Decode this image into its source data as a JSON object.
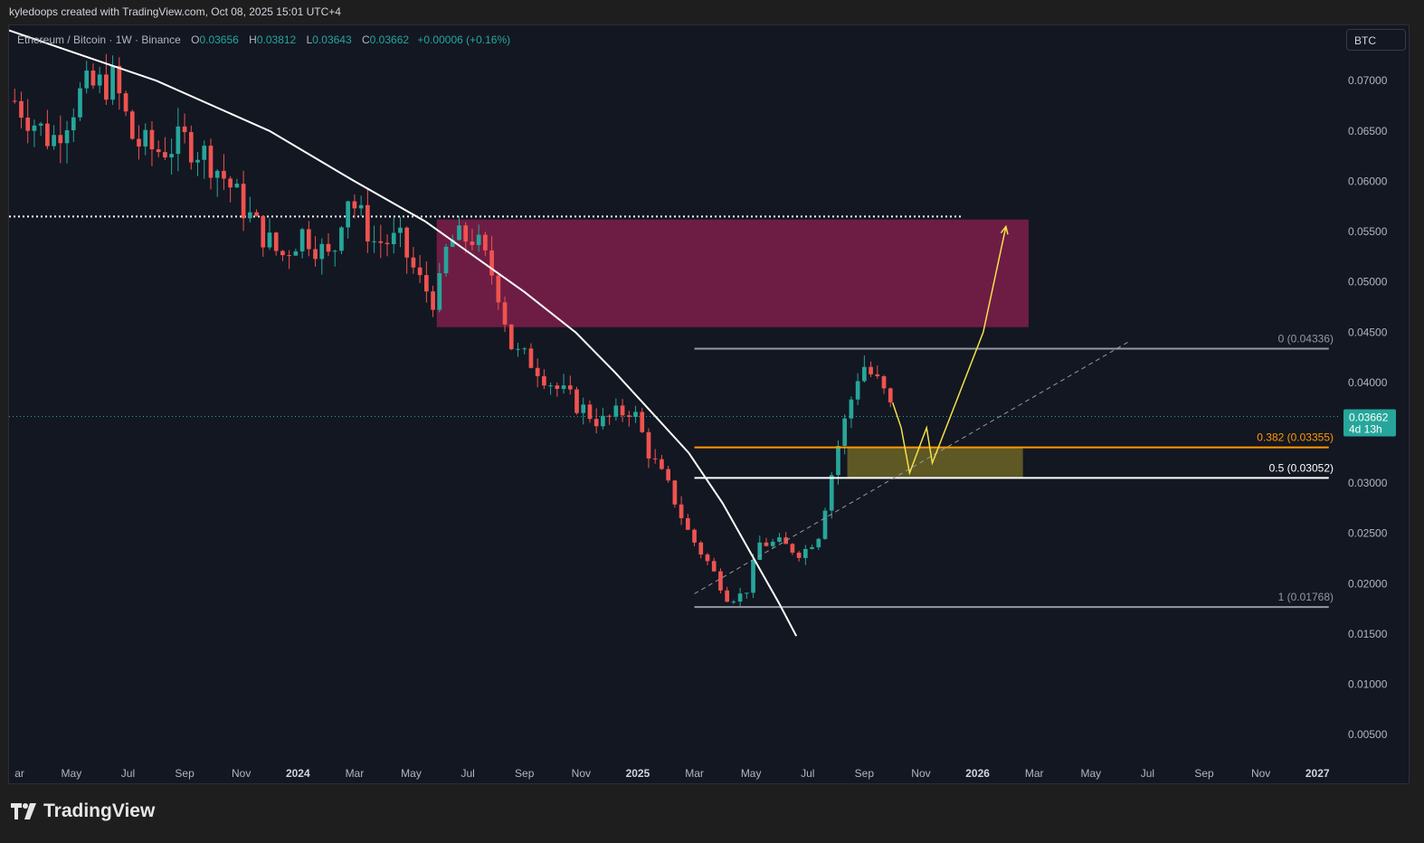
{
  "header": {
    "attribution": "kyledoops created with TradingView.com, Oct 08, 2025 15:01 UTC+4"
  },
  "legend": {
    "symbol": "Ethereum / Bitcoin · 1W · Binance",
    "open_label": "O",
    "open": "0.03656",
    "high_label": "H",
    "high": "0.03812",
    "low_label": "L",
    "low": "0.03643",
    "close_label": "C",
    "close": "0.03662",
    "change": "+0.00006 (+0.16%)"
  },
  "symbol_button": "BTC",
  "price_badge": {
    "price": "0.03662",
    "countdown": "4d 13h"
  },
  "footer": {
    "brand": "TradingView"
  },
  "colors": {
    "up": "#26a69a",
    "down": "#ef5350",
    "supply_zone": "#6d1d44",
    "demand_zone": "#6b6424",
    "fib_382": "#ff9800",
    "projection": "#f5e04a"
  },
  "chart_data": {
    "type": "candlestick",
    "timeframe": "1W",
    "y_ticks": [
      "0.07000",
      "0.06500",
      "0.06000",
      "0.05500",
      "0.05000",
      "0.04500",
      "0.04000",
      "0.03000",
      "0.02500",
      "0.02000",
      "0.01500",
      "0.01000",
      "0.00500"
    ],
    "x_ticks": [
      "ar",
      "May",
      "Jul",
      "Sep",
      "Nov",
      "2024",
      "Mar",
      "May",
      "Jul",
      "Sep",
      "Nov",
      "2025",
      "Mar",
      "May",
      "Jul",
      "Sep",
      "Nov",
      "2026",
      "Mar",
      "May",
      "Jul",
      "Sep",
      "Nov",
      "2027"
    ],
    "x_tick_months": [
      3,
      5,
      7,
      9,
      11,
      13,
      15,
      17,
      19,
      21,
      23,
      25,
      27,
      29,
      31,
      33,
      35,
      37,
      39,
      41,
      43,
      45,
      47,
      49
    ],
    "ylim": [
      0.0025,
      0.0755
    ],
    "xlim": [
      2.8,
      49.6
    ],
    "anchors": [
      [
        3.0,
        0.068
      ],
      [
        4.3,
        0.064
      ],
      [
        5.4,
        0.069
      ],
      [
        6.5,
        0.07
      ],
      [
        7.2,
        0.064
      ],
      [
        8.0,
        0.063
      ],
      [
        9.0,
        0.064
      ],
      [
        9.8,
        0.0625
      ],
      [
        10.5,
        0.06
      ],
      [
        11.4,
        0.056
      ],
      [
        12.4,
        0.0525
      ],
      [
        13.2,
        0.055
      ],
      [
        14.2,
        0.052
      ],
      [
        14.7,
        0.059
      ],
      [
        15.7,
        0.054
      ],
      [
        16.6,
        0.054
      ],
      [
        17.3,
        0.05
      ],
      [
        17.9,
        0.048
      ],
      [
        18.3,
        0.054
      ],
      [
        19.2,
        0.0545
      ],
      [
        20.0,
        0.05
      ],
      [
        20.6,
        0.043
      ],
      [
        21.3,
        0.042
      ],
      [
        22.1,
        0.0395
      ],
      [
        23.0,
        0.0375
      ],
      [
        23.7,
        0.036
      ],
      [
        24.4,
        0.037
      ],
      [
        24.8,
        0.0375
      ],
      [
        25.4,
        0.033
      ],
      [
        26.2,
        0.029
      ],
      [
        26.8,
        0.025
      ],
      [
        27.5,
        0.022
      ],
      [
        28.2,
        0.0185
      ],
      [
        28.8,
        0.019
      ],
      [
        29.3,
        0.024
      ],
      [
        30.0,
        0.024
      ],
      [
        30.8,
        0.023
      ],
      [
        31.4,
        0.025
      ],
      [
        32.0,
        0.033
      ],
      [
        32.9,
        0.042
      ],
      [
        33.6,
        0.0395
      ],
      [
        34.0,
        0.037
      ]
    ],
    "candle_start": 3.0,
    "candle_end": 34.0,
    "resistance_level": 0.0565,
    "supply_zone": {
      "x0": 17.9,
      "x1": 38.8,
      "y0": 0.0455,
      "y1": 0.0562
    },
    "demand_zone": {
      "x0": 32.4,
      "x1": 38.6,
      "y0": 0.0305,
      "y1": 0.0335
    },
    "fib_x": [
      27.0,
      49.4
    ],
    "fib_levels": [
      {
        "label": "0 (0.04336)",
        "value": 0.04336,
        "color": "#9598a1"
      },
      {
        "label": "0.382 (0.03355)",
        "value": 0.03355,
        "color": "#ff9800"
      },
      {
        "label": "0.5 (0.03052)",
        "value": 0.03052,
        "color": "#ffffff"
      },
      {
        "label": "1 (0.01768)",
        "value": 0.01768,
        "color": "#9598a1"
      }
    ],
    "curve": [
      [
        2.8,
        0.075
      ],
      [
        8.0,
        0.07
      ],
      [
        12.0,
        0.065
      ],
      [
        15.0,
        0.06
      ],
      [
        17.5,
        0.056
      ],
      [
        19.0,
        0.053
      ],
      [
        21.0,
        0.049
      ],
      [
        22.8,
        0.045
      ],
      [
        24.2,
        0.041
      ],
      [
        25.5,
        0.037
      ],
      [
        26.8,
        0.033
      ],
      [
        28.0,
        0.028
      ],
      [
        29.0,
        0.023
      ],
      [
        30.0,
        0.018
      ],
      [
        30.6,
        0.0148
      ]
    ],
    "trendline": [
      [
        27.0,
        0.019
      ],
      [
        42.3,
        0.044
      ]
    ],
    "projection": [
      [
        34.0,
        0.038
      ],
      [
        34.3,
        0.0355
      ],
      [
        34.6,
        0.031
      ],
      [
        35.2,
        0.0355
      ],
      [
        35.4,
        0.032
      ],
      [
        37.2,
        0.045
      ],
      [
        38.0,
        0.0555
      ]
    ],
    "current_price": 0.03662
  }
}
